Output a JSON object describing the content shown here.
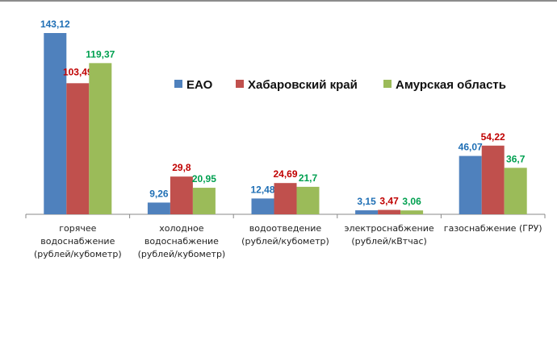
{
  "chart_data": {
    "type": "bar",
    "title": "",
    "xlabel": "",
    "ylabel": "",
    "ylim": [
      0,
      145
    ],
    "grid": false,
    "legend_position": "top-right",
    "categories": [
      [
        "горячее",
        "водоснабжение",
        "(рублей/кубометр)"
      ],
      [
        "холодное",
        "водоснабжение",
        "(рублей/кубометр)"
      ],
      [
        "водоотведение",
        "(рублей/кубометр)"
      ],
      [
        "электроснабжение",
        "(рублей/кВтчас)"
      ],
      [
        "газоснабжение (ГРУ)"
      ]
    ],
    "series": [
      {
        "name": "ЕАО",
        "color": "#4f81bd",
        "label_color": "#1f6fb5",
        "values": [
          143.12,
          9.26,
          12.48,
          3.15,
          46.07
        ],
        "labels": [
          "143,12",
          "9,26",
          "12,48",
          "3,15",
          "46,07"
        ]
      },
      {
        "name": "Хабаровский край",
        "color": "#c0504d",
        "label_color": "#c00000",
        "values": [
          103.49,
          29.8,
          24.69,
          3.47,
          54.22
        ],
        "labels": [
          "103,49",
          "29,8",
          "24,69",
          "3,47",
          "54,22"
        ]
      },
      {
        "name": "Амурская область",
        "color": "#9bbb59",
        "label_color": "#00a050",
        "values": [
          119.37,
          20.95,
          21.7,
          3.06,
          36.7
        ],
        "labels": [
          "119,37",
          "20,95",
          "21,7",
          "3,06",
          "36,7"
        ]
      }
    ]
  }
}
